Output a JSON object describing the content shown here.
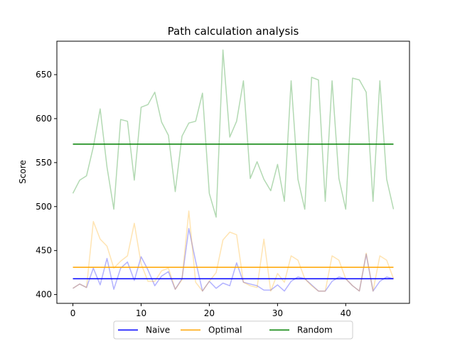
{
  "chart_data": {
    "type": "line",
    "title": "Path calculation analysis",
    "xlabel": "",
    "ylabel": "Score",
    "xlim": [
      -2.35,
      49.35
    ],
    "ylim": [
      390,
      688
    ],
    "xticks": [
      0,
      10,
      20,
      30,
      40
    ],
    "yticks": [
      400,
      450,
      500,
      550,
      600,
      650
    ],
    "grid": false,
    "legend_position": "bottom-center",
    "x": [
      0,
      1,
      2,
      3,
      4,
      5,
      6,
      7,
      8,
      9,
      10,
      11,
      12,
      13,
      14,
      15,
      16,
      17,
      18,
      19,
      20,
      21,
      22,
      23,
      24,
      25,
      26,
      27,
      28,
      29,
      30,
      31,
      32,
      33,
      34,
      35,
      36,
      37,
      38,
      39,
      40,
      41,
      42,
      43,
      44,
      45,
      46,
      47
    ],
    "series": [
      {
        "name": "Naive",
        "color": "#0000ff",
        "kind": "raw",
        "opacity": 0.3,
        "values": [
          407,
          412,
          408,
          430,
          411,
          441,
          406,
          430,
          437,
          416,
          443,
          428,
          410,
          421,
          426,
          406,
          418,
          475,
          438,
          404,
          415,
          407,
          413,
          410,
          436,
          414,
          412,
          410,
          405,
          405,
          411,
          404,
          415,
          420,
          418,
          411,
          404,
          404,
          415,
          420,
          418,
          410,
          404,
          446,
          404,
          415,
          420,
          418
        ]
      },
      {
        "name": "Optimal",
        "color": "#ffa500",
        "kind": "raw",
        "opacity": 0.3,
        "values": [
          407,
          412,
          408,
          483,
          463,
          455,
          430,
          438,
          444,
          481,
          435,
          415,
          415,
          427,
          430,
          406,
          417,
          495,
          414,
          404,
          415,
          425,
          462,
          471,
          468,
          414,
          410,
          408,
          463,
          404,
          424,
          414,
          444,
          439,
          418,
          410,
          404,
          404,
          444,
          439,
          418,
          410,
          404,
          447,
          404,
          444,
          439,
          418
        ]
      },
      {
        "name": "Random",
        "color": "#008000",
        "kind": "raw",
        "opacity": 0.3,
        "values": [
          515,
          530,
          535,
          568,
          611,
          545,
          497,
          599,
          597,
          530,
          613,
          616,
          630,
          596,
          581,
          517,
          580,
          595,
          597,
          629,
          515,
          488,
          678,
          579,
          597,
          643,
          532,
          551,
          531,
          518,
          548,
          506,
          643,
          531,
          497,
          647,
          644,
          506,
          643,
          532,
          497,
          646,
          644,
          630,
          506,
          643,
          531,
          497
        ]
      },
      {
        "name": "Naive",
        "color": "#0000ff",
        "kind": "mean",
        "value": 418
      },
      {
        "name": "Optimal",
        "color": "#ffa500",
        "kind": "mean",
        "value": 431
      },
      {
        "name": "Random",
        "color": "#008000",
        "kind": "mean",
        "value": 571
      }
    ],
    "legend": [
      {
        "label": "Naive",
        "color": "#0000ff"
      },
      {
        "label": "Optimal",
        "color": "#ffa500"
      },
      {
        "label": "Random",
        "color": "#008000"
      }
    ]
  }
}
